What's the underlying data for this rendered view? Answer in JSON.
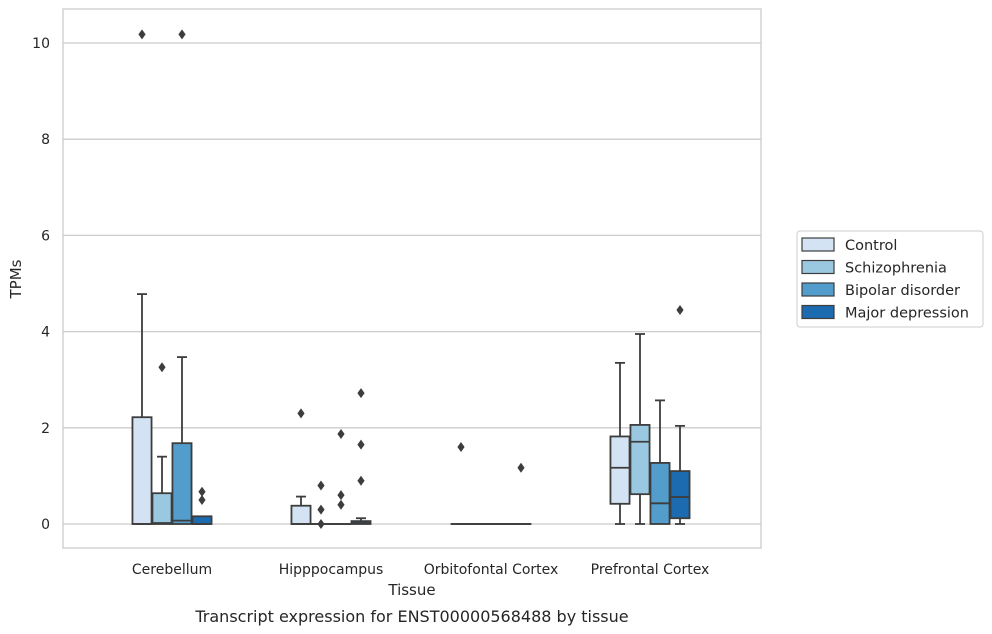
{
  "chart_data": {
    "type": "boxplot",
    "title": "",
    "caption": "Transcript expression for ENST00000568488 by tissue",
    "xlabel": "Tissue",
    "ylabel": "TPMs",
    "ylim": [
      -0.5,
      10.7
    ],
    "yticks": [
      0,
      2,
      4,
      6,
      8,
      10
    ],
    "grid": "horizontal",
    "legend_position": "right",
    "categories": [
      "Cerebellum",
      "Hipppocampus",
      "Orbitofontal Cortex",
      "Prefrontal Cortex"
    ],
    "series": [
      {
        "name": "Control",
        "color": "#d3e3f3",
        "boxes": [
          {
            "whisker_low": 0,
            "q1": 0,
            "median": 0,
            "q3": 2.22,
            "whisker_high": 4.78,
            "outliers": [
              10.18
            ]
          },
          {
            "whisker_low": 0,
            "q1": 0,
            "median": 0,
            "q3": 0.38,
            "whisker_high": 0.57,
            "outliers": [
              2.3
            ]
          },
          {
            "whisker_low": 0,
            "q1": 0,
            "median": 0,
            "q3": 0,
            "whisker_high": 0,
            "outliers": [
              1.6
            ]
          },
          {
            "whisker_low": 0,
            "q1": 0.42,
            "median": 1.17,
            "q3": 1.82,
            "whisker_high": 3.35,
            "outliers": []
          }
        ]
      },
      {
        "name": "Schizophrenia",
        "color": "#9ac8e0",
        "boxes": [
          {
            "whisker_low": 0,
            "q1": 0,
            "median": 0.02,
            "q3": 0.64,
            "whisker_high": 1.4,
            "outliers": [
              3.26
            ]
          },
          {
            "whisker_low": 0,
            "q1": 0,
            "median": 0,
            "q3": 0,
            "whisker_high": 0,
            "outliers": [
              0.8,
              0.3,
              0
            ]
          },
          {
            "whisker_low": 0,
            "q1": 0,
            "median": 0,
            "q3": 0,
            "whisker_high": 0,
            "outliers": []
          },
          {
            "whisker_low": 0,
            "q1": 0.62,
            "median": 1.71,
            "q3": 2.06,
            "whisker_high": 3.95,
            "outliers": []
          }
        ]
      },
      {
        "name": "Bipolar disorder",
        "color": "#529dcc",
        "boxes": [
          {
            "whisker_low": 0,
            "q1": 0,
            "median": 0.07,
            "q3": 1.68,
            "whisker_high": 3.47,
            "outliers": [
              10.18
            ]
          },
          {
            "whisker_low": 0,
            "q1": 0,
            "median": 0,
            "q3": 0,
            "whisker_high": 0,
            "outliers": [
              1.87,
              0.6,
              0.4
            ]
          },
          {
            "whisker_low": 0,
            "q1": 0,
            "median": 0,
            "q3": 0,
            "whisker_high": 0,
            "outliers": []
          },
          {
            "whisker_low": 0,
            "q1": 0,
            "median": 0.43,
            "q3": 1.27,
            "whisker_high": 2.57,
            "outliers": []
          }
        ]
      },
      {
        "name": "Major depression",
        "color": "#1c6aaf",
        "boxes": [
          {
            "whisker_low": 0,
            "q1": 0,
            "median": 0,
            "q3": 0.16,
            "whisker_high": 0.16,
            "outliers": [
              0.67,
              0.5
            ]
          },
          {
            "whisker_low": 0,
            "q1": 0,
            "median": 0.02,
            "q3": 0.06,
            "whisker_high": 0.12,
            "outliers": [
              2.72,
              1.65,
              0.9
            ]
          },
          {
            "whisker_low": 0,
            "q1": 0,
            "median": 0,
            "q3": 0,
            "whisker_high": 0,
            "outliers": [
              1.17
            ]
          },
          {
            "whisker_low": 0,
            "q1": 0.12,
            "median": 0.56,
            "q3": 1.1,
            "whisker_high": 2.04,
            "outliers": [
              4.45
            ]
          }
        ]
      }
    ]
  }
}
